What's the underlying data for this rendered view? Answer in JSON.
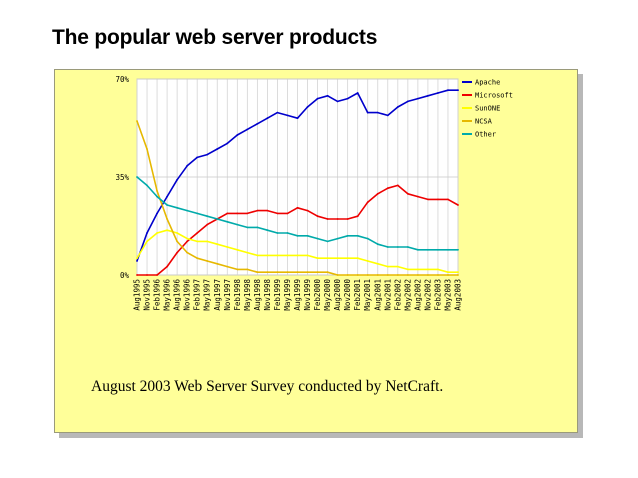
{
  "slide": {
    "title": "The popular web server products",
    "caption": "August 2003 Web Server Survey conducted by NetCraft."
  },
  "chart_data": {
    "type": "line",
    "title": "",
    "xlabel": "",
    "ylabel": "",
    "ylim": [
      0,
      70
    ],
    "yticks": [
      "0%",
      "35%",
      "70%"
    ],
    "grid": true,
    "legend_position": "right",
    "x": [
      "Aug1995",
      "Nov1995",
      "Feb1996",
      "May1996",
      "Aug1996",
      "Nov1996",
      "Feb1997",
      "May1997",
      "Aug1997",
      "Nov1997",
      "Feb1998",
      "May1998",
      "Aug1998",
      "Nov1998",
      "Feb1999",
      "May1999",
      "Aug1999",
      "Nov1999",
      "Feb2000",
      "May2000",
      "Aug2000",
      "Nov2000",
      "Feb2001",
      "May2001",
      "Aug2001",
      "Nov2001",
      "Feb2002",
      "May2002",
      "Aug2002",
      "Nov2002",
      "Feb2003",
      "May2003",
      "Aug2003"
    ],
    "series": [
      {
        "name": "Apache",
        "color": "#0000cc",
        "values": [
          5,
          15,
          22,
          28,
          34,
          39,
          42,
          43,
          45,
          47,
          50,
          52,
          54,
          56,
          58,
          57,
          56,
          60,
          63,
          64,
          62,
          63,
          65,
          58,
          58,
          57,
          60,
          62,
          63,
          64,
          65,
          66,
          66
        ]
      },
      {
        "name": "Microsoft",
        "color": "#ee0000",
        "values": [
          0,
          0,
          0,
          3,
          8,
          12,
          15,
          18,
          20,
          22,
          22,
          22,
          23,
          23,
          22,
          22,
          24,
          23,
          21,
          20,
          20,
          20,
          21,
          26,
          29,
          31,
          32,
          29,
          28,
          27,
          27,
          27,
          25
        ]
      },
      {
        "name": "SunONE",
        "color": "#ffff00",
        "values": [
          6,
          12,
          15,
          16,
          15,
          13,
          12,
          12,
          11,
          10,
          9,
          8,
          7,
          7,
          7,
          7,
          7,
          7,
          6,
          6,
          6,
          6,
          6,
          5,
          4,
          3,
          3,
          2,
          2,
          2,
          2,
          1,
          1
        ]
      },
      {
        "name": "NCSA",
        "color": "#e6b800",
        "values": [
          55,
          45,
          30,
          20,
          12,
          8,
          6,
          5,
          4,
          3,
          2,
          2,
          1,
          1,
          1,
          1,
          1,
          1,
          1,
          1,
          0,
          0,
          0,
          0,
          0,
          0,
          0,
          0,
          0,
          0,
          0,
          0,
          0
        ]
      },
      {
        "name": "Other",
        "color": "#00aaaa",
        "values": [
          35,
          32,
          28,
          25,
          24,
          23,
          22,
          21,
          20,
          19,
          18,
          17,
          17,
          16,
          15,
          15,
          14,
          14,
          13,
          12,
          13,
          14,
          14,
          13,
          11,
          10,
          10,
          10,
          9,
          9,
          9,
          9,
          9
        ]
      }
    ]
  }
}
